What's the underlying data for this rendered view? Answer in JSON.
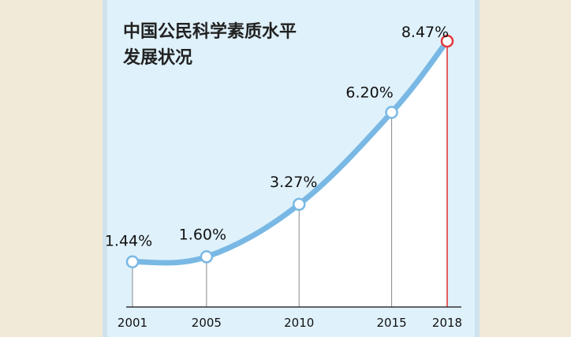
{
  "chart_data": {
    "type": "line",
    "title_lines": [
      "中国公民科学素质水平",
      "发展状况"
    ],
    "x": [
      2001,
      2005,
      2010,
      2015,
      2018
    ],
    "x_tick_labels": [
      "2001",
      "2005",
      "2010",
      "2015",
      "2018"
    ],
    "values": [
      1.44,
      1.6,
      3.27,
      6.2,
      8.47
    ],
    "value_labels": [
      "1.44%",
      "1.60%",
      "3.27%",
      "6.20%",
      "8.47%"
    ],
    "ylim": [
      0,
      9
    ],
    "grid": false,
    "highlight_index": 4
  },
  "colors": {
    "background": "#f2ead8",
    "panel": "#dff1fb",
    "line": "#79b8e4",
    "area": "#ffffff",
    "highlight": "#e0393b",
    "axis": "#333333"
  }
}
